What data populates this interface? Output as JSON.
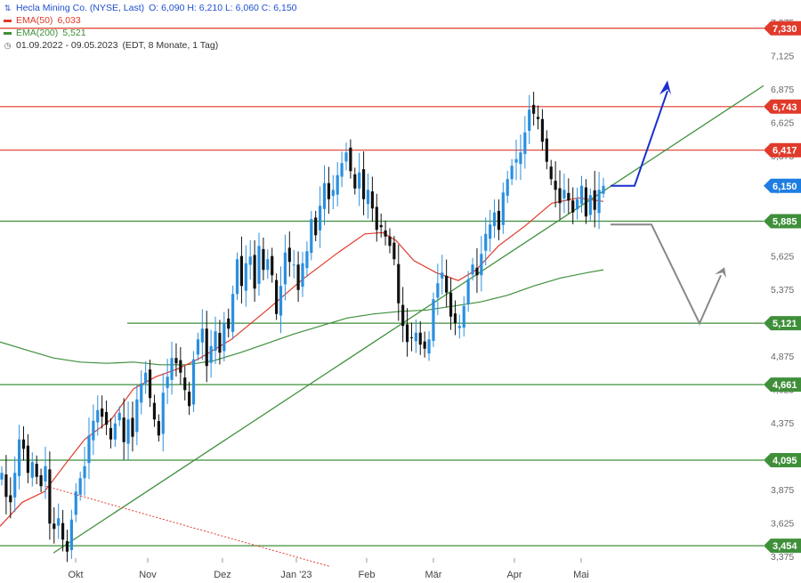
{
  "legend": {
    "title": "Hecla Mining Co. (NYSE, Last)",
    "ohlc": "O: 6,090  H: 6,210  L: 6,060  C: 6,150",
    "ema50_label": "EMA(50)",
    "ema50_value": "6,033",
    "ema200_label": "EMA(200)",
    "ema200_value": "5,521",
    "range": "01.09.2022 - 09.05.2023",
    "range_info": "(EDT, 8 Monate, 1 Tag)"
  },
  "colors": {
    "up": "#2a8fe0",
    "down": "#111111",
    "ema50": "#e03a2a",
    "ema200": "#3f8f3a",
    "resistance": "#e03a2a",
    "support": "#3f8f3a",
    "current": "#1e7de0",
    "forecast_up": "#1a2fcf",
    "forecast_down": "#888888",
    "downtrend": "#e03a2a"
  },
  "chart_data": {
    "type": "candlestick",
    "title": "Hecla Mining Co. (NYSE, Last)",
    "x_labels": [
      "Okt",
      "Nov",
      "Dez",
      "Jan '23",
      "Feb",
      "Mär",
      "Apr",
      "Mai"
    ],
    "y_ticks": [
      "3,375",
      "3,625",
      "3,875",
      "4,125",
      "4,375",
      "4,625",
      "4,875",
      "5,125",
      "5,375",
      "5,625",
      "5,875",
      "6,125",
      "6,375",
      "6,625",
      "6,875",
      "7,125",
      "7,375"
    ],
    "ylim": [
      3.33,
      7.4
    ],
    "y_axis": "right",
    "resistance_levels": [
      {
        "value": 7.33,
        "label": "7,330"
      },
      {
        "value": 6.743,
        "label": "6,743"
      },
      {
        "value": 6.417,
        "label": "6,417"
      }
    ],
    "support_levels": [
      {
        "value": 5.885,
        "label": "5,885"
      },
      {
        "value": 5.121,
        "label": "5,121"
      },
      {
        "value": 4.661,
        "label": "4,661"
      },
      {
        "value": 4.095,
        "label": "4,095"
      },
      {
        "value": 3.454,
        "label": "3,454"
      }
    ],
    "current": {
      "value": 6.15,
      "label": "6,150"
    },
    "last_bar": {
      "open": 6.09,
      "high": 6.21,
      "low": 6.06,
      "close": 6.15
    },
    "ema50_last": 6.033,
    "ema200_last": 5.521,
    "closes": [
      4.0,
      3.82,
      3.78,
      4.0,
      4.25,
      4.18,
      4.0,
      4.08,
      3.97,
      3.9,
      4.05,
      3.62,
      3.58,
      3.66,
      3.5,
      3.41,
      3.65,
      3.86,
      3.96,
      4.05,
      4.28,
      4.39,
      4.47,
      4.42,
      4.36,
      4.25,
      4.37,
      4.45,
      4.23,
      4.4,
      4.27,
      4.55,
      4.67,
      4.75,
      4.56,
      4.4,
      4.28,
      4.6,
      4.72,
      4.86,
      4.82,
      4.75,
      4.62,
      4.5,
      4.85,
      5.0,
      5.08,
      4.8,
      4.95,
      5.06,
      4.9,
      5.12,
      5.08,
      5.34,
      5.6,
      5.4,
      5.57,
      5.62,
      5.38,
      5.7,
      5.52,
      5.6,
      5.48,
      5.19,
      5.4,
      5.65,
      5.58,
      5.56,
      5.37,
      5.57,
      5.66,
      5.9,
      5.78,
      6.0,
      6.17,
      6.05,
      6.12,
      6.23,
      6.32,
      6.4,
      6.26,
      6.13,
      6.25,
      6.05,
      6.12,
      5.98,
      5.82,
      5.84,
      5.77,
      5.7,
      5.6,
      5.27,
      5.1,
      4.98,
      5.01,
      5.05,
      4.96,
      4.93,
      5.0,
      5.3,
      5.42,
      5.5,
      5.35,
      5.17,
      5.12,
      5.1,
      5.25,
      5.45,
      5.56,
      5.48,
      5.64,
      5.79,
      5.86,
      5.95,
      5.82,
      6.1,
      6.2,
      6.3,
      6.35,
      6.4,
      6.55,
      6.72,
      6.69,
      6.65,
      6.48,
      6.33,
      6.2,
      6.12,
      6.02,
      6.12,
      6.04,
      5.95,
      6.05,
      6.15,
      5.92,
      6.08,
      5.97,
      6.12,
      6.15
    ],
    "ema50": [
      [
        0,
        3.6
      ],
      [
        25,
        3.78
      ],
      [
        50,
        3.86
      ],
      [
        75,
        4.08
      ],
      [
        95,
        4.25
      ],
      [
        125,
        4.4
      ],
      [
        150,
        4.63
      ],
      [
        175,
        4.72
      ],
      [
        200,
        4.78
      ],
      [
        225,
        4.86
      ],
      [
        260,
        5.0
      ],
      [
        300,
        5.22
      ],
      [
        340,
        5.45
      ],
      [
        380,
        5.65
      ],
      [
        410,
        5.79
      ],
      [
        430,
        5.8
      ],
      [
        445,
        5.74
      ],
      [
        465,
        5.59
      ],
      [
        490,
        5.5
      ],
      [
        515,
        5.44
      ],
      [
        535,
        5.52
      ],
      [
        560,
        5.7
      ],
      [
        590,
        5.85
      ],
      [
        620,
        6.02
      ],
      [
        650,
        6.06
      ],
      [
        678,
        6.033
      ]
    ],
    "ema200": [
      [
        0,
        4.98
      ],
      [
        30,
        4.92
      ],
      [
        60,
        4.86
      ],
      [
        90,
        4.83
      ],
      [
        120,
        4.82
      ],
      [
        150,
        4.83
      ],
      [
        180,
        4.81
      ],
      [
        210,
        4.81
      ],
      [
        240,
        4.84
      ],
      [
        270,
        4.9
      ],
      [
        300,
        4.97
      ],
      [
        330,
        5.04
      ],
      [
        360,
        5.1
      ],
      [
        390,
        5.16
      ],
      [
        420,
        5.19
      ],
      [
        450,
        5.21
      ],
      [
        480,
        5.22
      ],
      [
        510,
        5.25
      ],
      [
        540,
        5.28
      ],
      [
        570,
        5.33
      ],
      [
        600,
        5.4
      ],
      [
        630,
        5.46
      ],
      [
        660,
        5.5
      ],
      [
        678,
        5.521
      ]
    ]
  }
}
